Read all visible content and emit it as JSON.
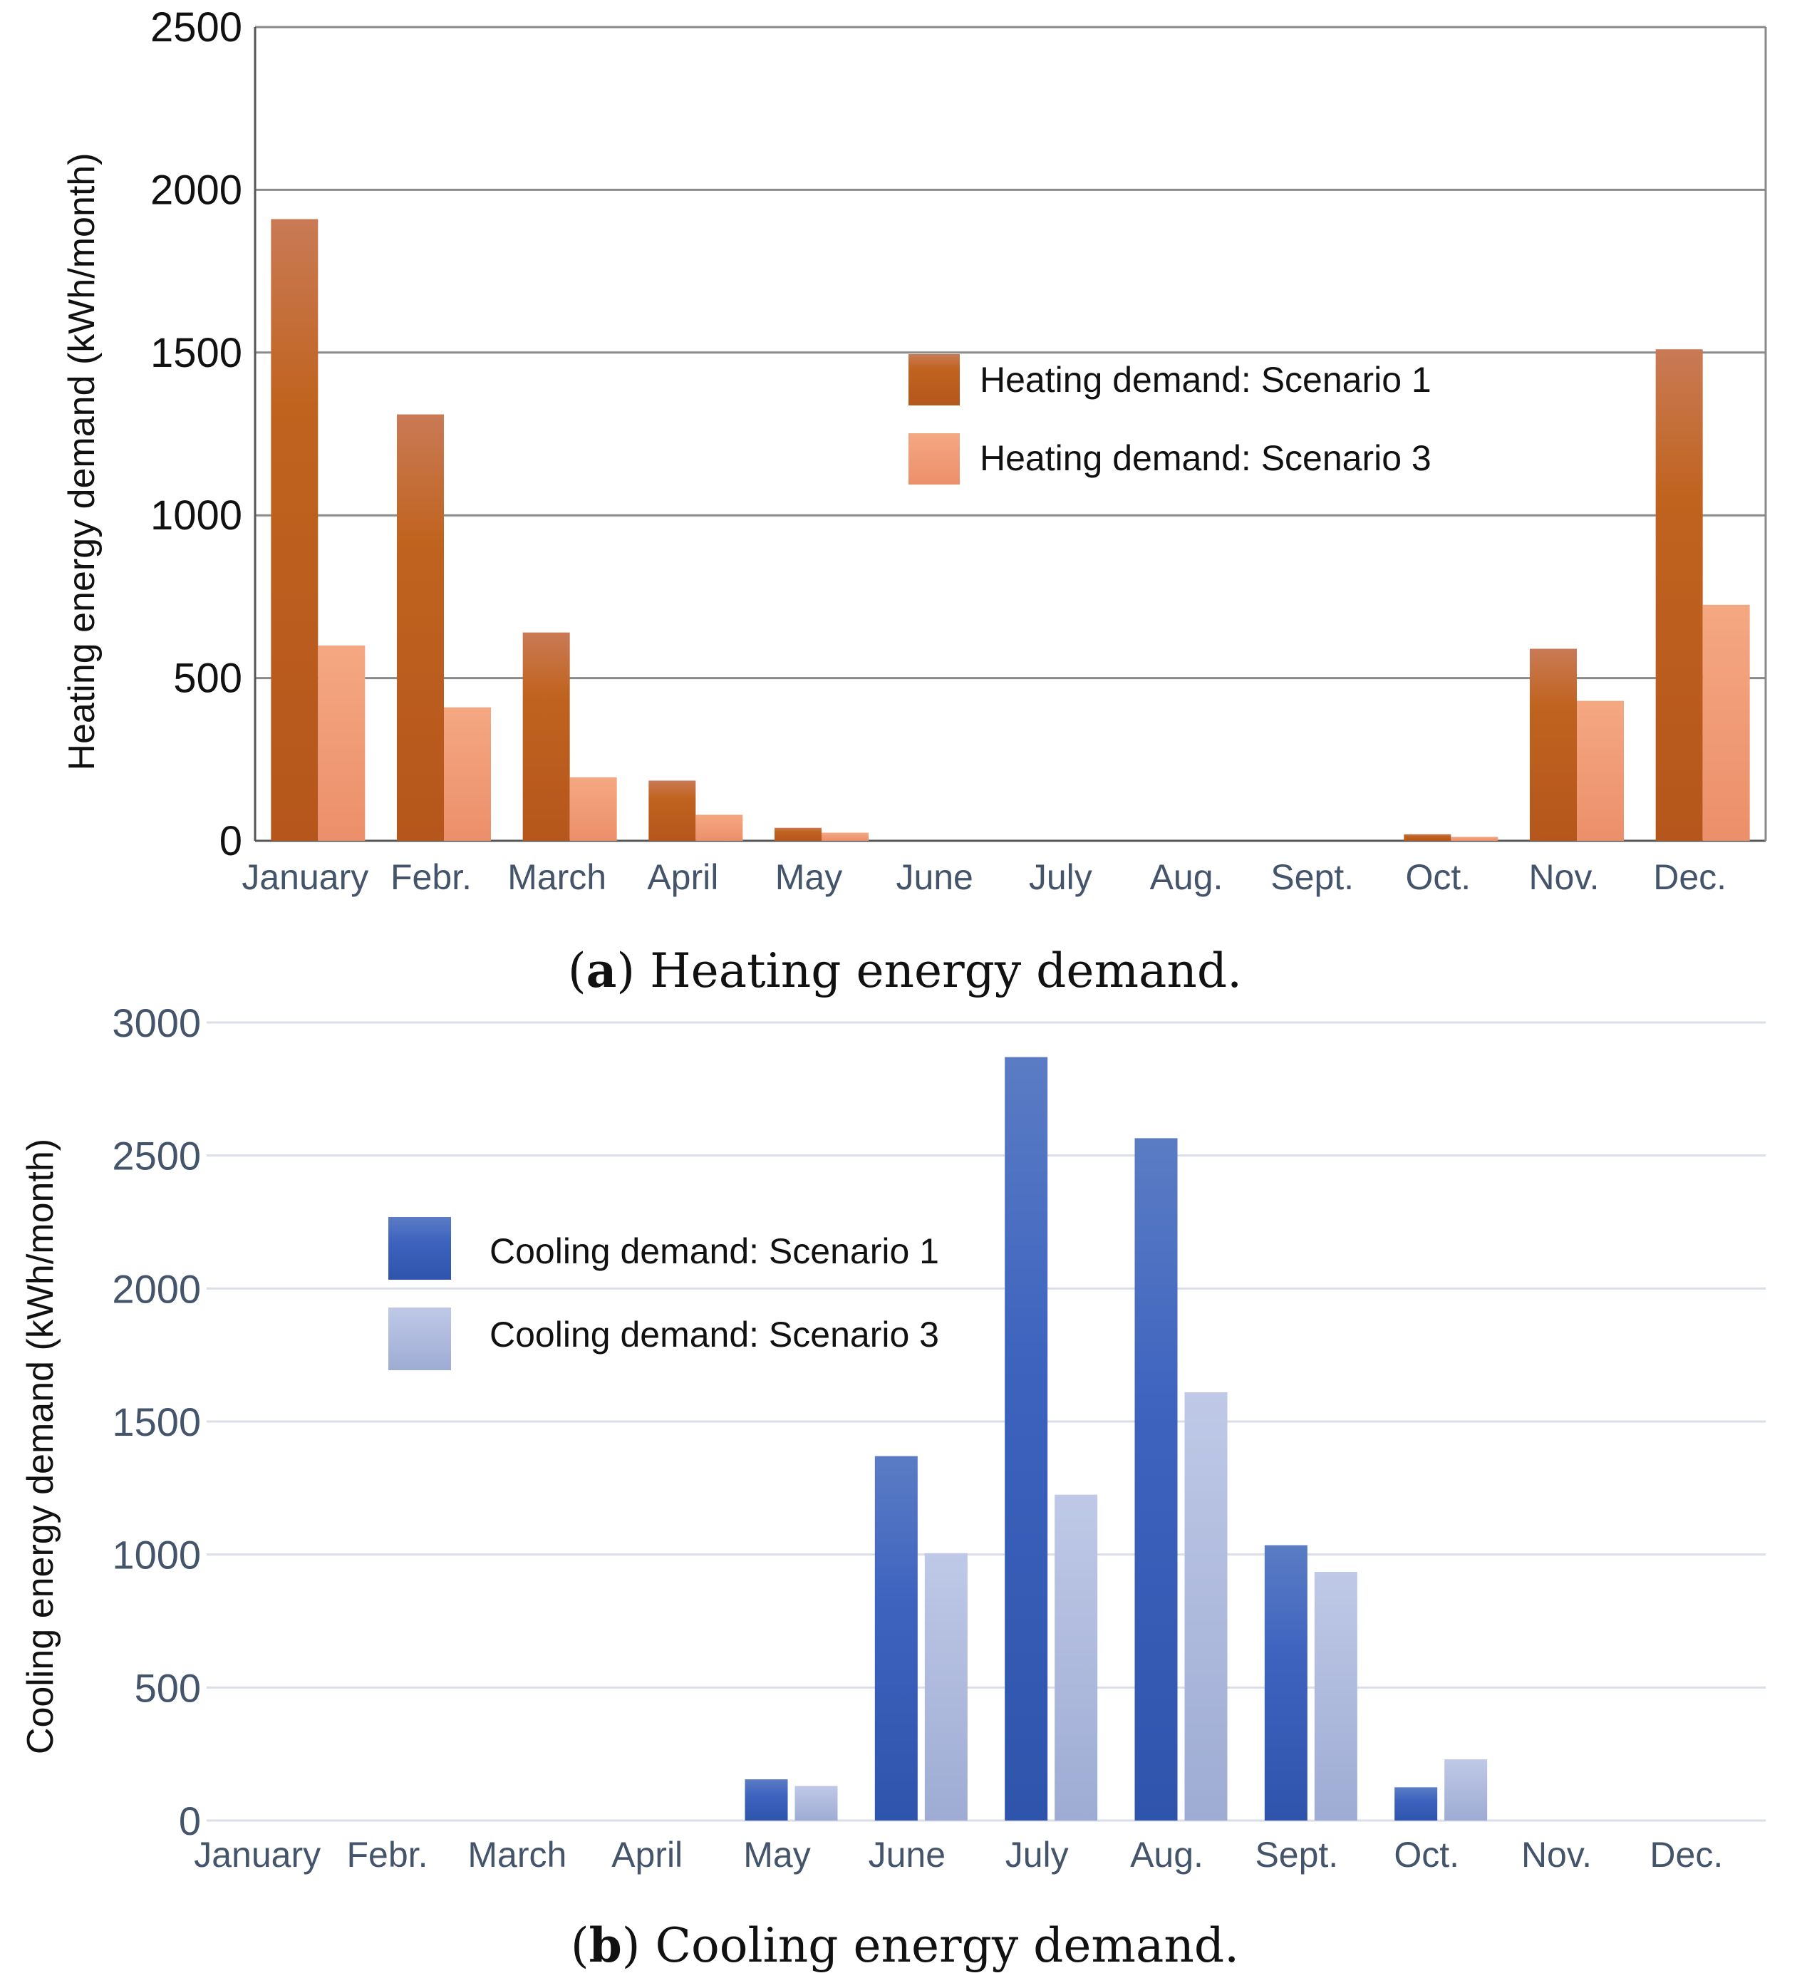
{
  "chart_data": [
    {
      "type": "bar",
      "title": "",
      "caption_letter": "a",
      "caption_text": "Heating energy demand.",
      "ylabel": "Heating energy demand (kWh/month)",
      "xlabel": "",
      "ylim": [
        0,
        2500
      ],
      "yticks": [
        0,
        500,
        1000,
        1500,
        2000,
        2500
      ],
      "grid": true,
      "legend_position": "middle-right",
      "categories": [
        "January",
        "Febr.",
        "March",
        "April",
        "May",
        "June",
        "July",
        "Aug.",
        "Sept.",
        "Oct.",
        "Nov.",
        "Dec."
      ],
      "series": [
        {
          "name": "Heating demand: Scenario 1",
          "color": "#b85a22",
          "color_top": "#c97a55",
          "values": [
            1910,
            1310,
            640,
            185,
            40,
            0,
            0,
            0,
            0,
            20,
            590,
            1510
          ]
        },
        {
          "name": "Heating demand: Scenario 3",
          "color": "#f09a76",
          "color_top": "#f4a882",
          "values": [
            600,
            410,
            195,
            80,
            25,
            0,
            0,
            0,
            0,
            12,
            430,
            725
          ]
        }
      ]
    },
    {
      "type": "bar",
      "title": "",
      "caption_letter": "b",
      "caption_text": "Cooling energy demand.",
      "ylabel": "Cooling energy demand (kWh/month)",
      "xlabel": "",
      "ylim": [
        0,
        3000
      ],
      "yticks": [
        0,
        500,
        1000,
        1500,
        2000,
        2500,
        3000
      ],
      "grid": true,
      "legend_position": "top-left",
      "categories": [
        "January",
        "Febr.",
        "March",
        "April",
        "May",
        "June",
        "July",
        "Aug.",
        "Sept.",
        "Oct.",
        "Nov.",
        "Dec."
      ],
      "series": [
        {
          "name": "Cooling demand: Scenario 1",
          "color": "#3458b4",
          "color_top": "#5b7cc4",
          "values": [
            0,
            0,
            0,
            0,
            155,
            1370,
            2870,
            2565,
            1035,
            125,
            0,
            0
          ]
        },
        {
          "name": "Cooling demand: Scenario 3",
          "color": "#a6b3d8",
          "color_top": "#bcc6e6",
          "values": [
            0,
            0,
            0,
            0,
            130,
            1005,
            1225,
            1610,
            935,
            230,
            0,
            0
          ]
        }
      ]
    }
  ]
}
